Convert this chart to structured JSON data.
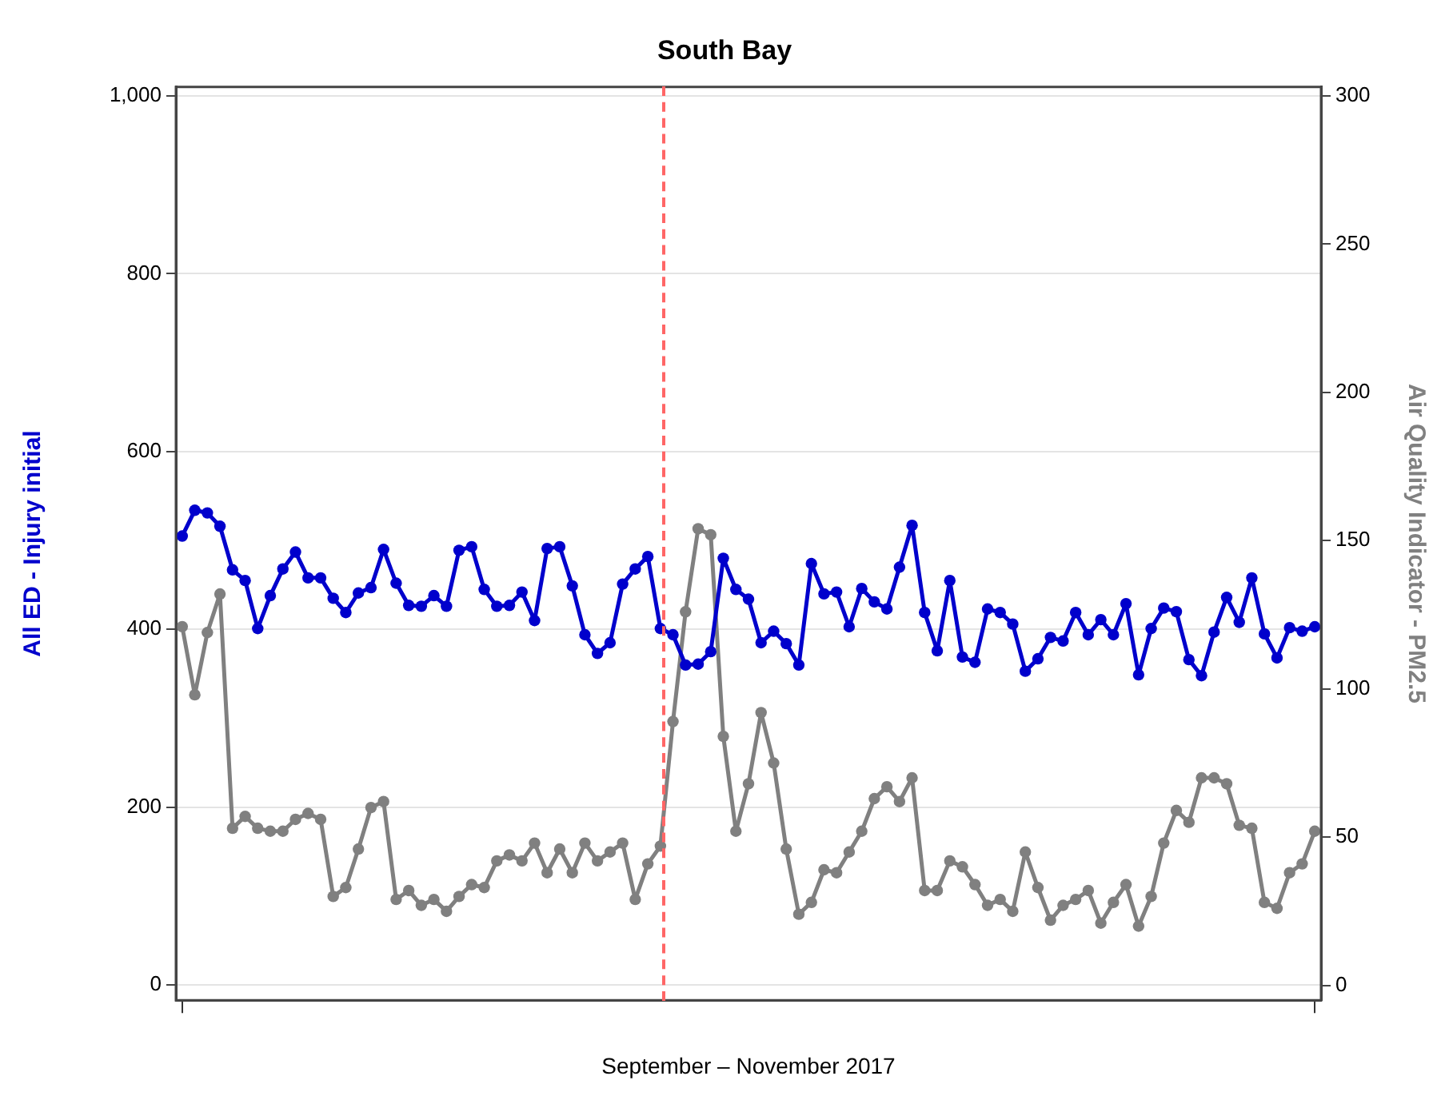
{
  "chart_data": {
    "type": "line",
    "title": "South Bay",
    "xlabel": "September – November 2017",
    "ylabel": "All ED - Injury initial",
    "y2label": "Air Quality Indicator - PM2.5",
    "categories": [
      null,
      null,
      null,
      null,
      null,
      null,
      null,
      null,
      null,
      null,
      null,
      null,
      null,
      null,
      null,
      null,
      null,
      null,
      null,
      null,
      null,
      null,
      null,
      null,
      null,
      null,
      null,
      null,
      null,
      null,
      null,
      null,
      null,
      null,
      null,
      null,
      null,
      null,
      null,
      null,
      null,
      null,
      null,
      null,
      null,
      null,
      null,
      null,
      null,
      null,
      null,
      null,
      null,
      null,
      null,
      null,
      null,
      null,
      null,
      null,
      null,
      null,
      null,
      null,
      null,
      null,
      null,
      null,
      null,
      null,
      null,
      null,
      null,
      null,
      null,
      null,
      null,
      null,
      null,
      null,
      null,
      null,
      null,
      null,
      null,
      null,
      null,
      null,
      null,
      null,
      null
    ],
    "series": [
      {
        "color": "#0000cc",
        "values": [
          505,
          534,
          531,
          516,
          467,
          455,
          401,
          438,
          468,
          487,
          458,
          458,
          435,
          419,
          441,
          447,
          490,
          452,
          427,
          426,
          438,
          426,
          489,
          493,
          445,
          426,
          427,
          442,
          410,
          491,
          493,
          449,
          394,
          373,
          385,
          451,
          468,
          482,
          401,
          394,
          360,
          361,
          375,
          480,
          445,
          434,
          385,
          398,
          384,
          360,
          474,
          440,
          442,
          403,
          446,
          431,
          423,
          470,
          517,
          419,
          376,
          455,
          369,
          363,
          423,
          419,
          406,
          353,
          367,
          391,
          387,
          419,
          394,
          411,
          394,
          429,
          349,
          401,
          424,
          420,
          366,
          348,
          397,
          436,
          408,
          458,
          395,
          368,
          402,
          398,
          403
        ]
      },
      {
        "color": "#808080",
        "axis": "y2",
        "values": [
          121,
          98,
          119,
          132,
          53,
          57,
          53,
          52,
          52,
          56,
          58,
          56,
          30,
          33,
          46,
          60,
          62,
          29,
          32,
          27,
          29,
          25,
          30,
          34,
          33,
          42,
          44,
          42,
          48,
          38,
          46,
          38,
          48,
          42,
          45,
          48,
          29,
          41,
          47,
          89,
          126,
          154,
          152,
          84,
          52,
          68,
          92,
          75,
          46,
          24,
          28,
          39,
          38,
          45,
          52,
          63,
          67,
          62,
          70,
          32,
          32,
          42,
          40,
          34,
          27,
          29,
          25,
          45,
          33,
          22,
          27,
          29,
          32,
          21,
          28,
          34,
          20,
          30,
          48,
          59,
          55,
          70,
          70,
          68,
          54,
          53,
          28,
          26,
          38,
          41,
          52
        ]
      }
    ],
    "ylim": [
      -17,
      1010
    ],
    "yticks": [
      0,
      200,
      400,
      600,
      800,
      {
        "value": 1000,
        "label": "1,000"
      }
    ],
    "y2lim": [
      -5,
      303
    ],
    "y2ticks": [
      0,
      50,
      100,
      150,
      200,
      250,
      300
    ],
    "tick_labels": "y",
    "grid": "y",
    "legend": false,
    "marker": "circle",
    "line_style": "solid"
  }
}
